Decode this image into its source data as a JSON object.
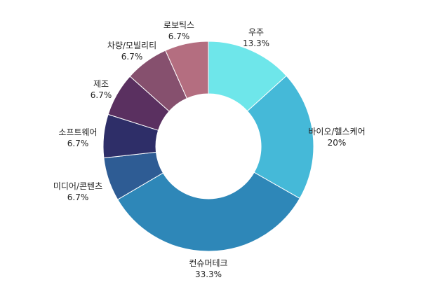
{
  "chart_data": {
    "type": "pie",
    "variant": "donut",
    "categories": [
      "우주",
      "바이오/헬스케어",
      "컨슈머테크",
      "미디어/콘텐츠",
      "소프트웨어",
      "제조",
      "차량/모빌리티",
      "로보틱스"
    ],
    "values": [
      13.3,
      20,
      33.3,
      6.7,
      6.7,
      6.7,
      6.7,
      6.7
    ],
    "value_labels": [
      "13.3%",
      "20%",
      "33.3%",
      "6.7%",
      "6.7%",
      "6.7%",
      "6.7%",
      "6.7%"
    ],
    "colors": [
      "#6ee6ea",
      "#45b9d8",
      "#2e87b8",
      "#2e5c94",
      "#2e2e68",
      "#5a3060",
      "#86506e",
      "#b46e80"
    ],
    "start_angle_deg": 0,
    "direction": "clockwise",
    "legend": "none"
  }
}
